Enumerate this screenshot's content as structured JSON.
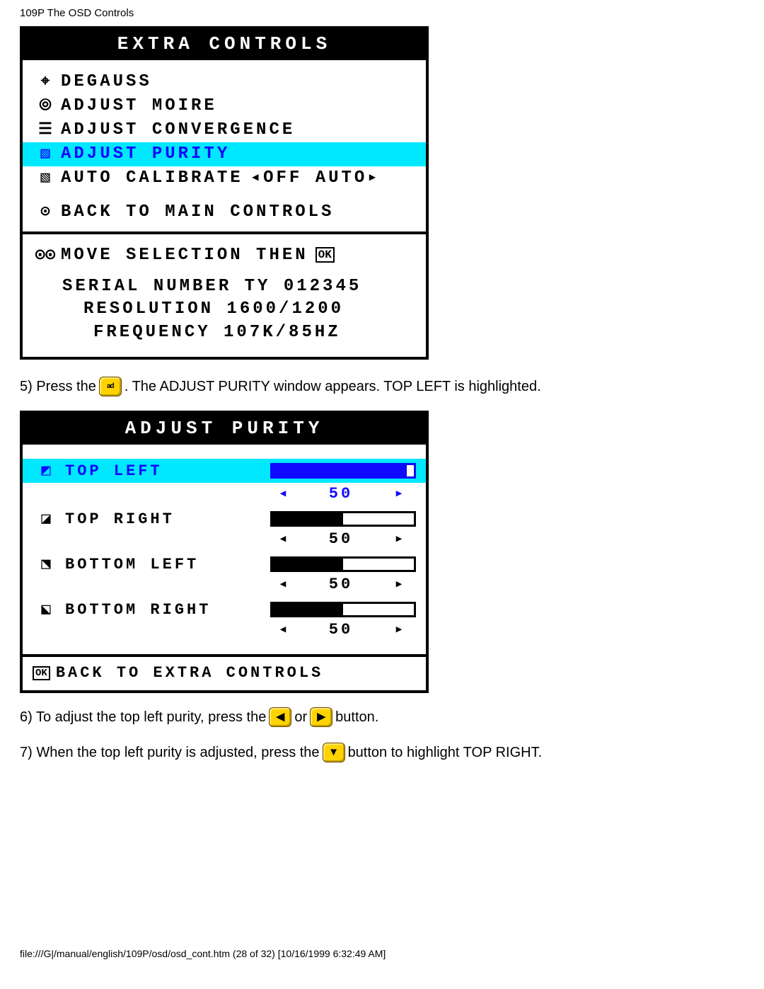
{
  "header": "109P The OSD Controls",
  "extra_controls": {
    "title": "EXTRA  CONTROLS",
    "highlight_index": 3,
    "items": [
      {
        "icon": "⌖",
        "label": "DEGAUSS"
      },
      {
        "icon": "⦾",
        "label": "ADJUST MOIRE"
      },
      {
        "icon": "☰",
        "label": "ADJUST CONVERGENCE"
      },
      {
        "icon": "▨",
        "label": "ADJUST PURITY"
      },
      {
        "icon": "▧",
        "label": "AUTO CALIBRATE",
        "extra": "◂OFF  AUTO▸"
      }
    ],
    "back_icon": "⊙",
    "back_label": "BACK TO MAIN CONTROLS",
    "move_icon": "⊙⊙",
    "move_label": "MOVE SELECTION THEN",
    "move_trail_icon": "⌷OK⌷",
    "serial_label": "SERIAL NUMBER TY 012345",
    "resolution_label": "RESOLUTION 1600/1200",
    "frequency_label": "FREQUENCY 107K/85HZ"
  },
  "step5": {
    "pre": "5) Press the",
    "btn": "ad",
    "post": ". The ADJUST PURITY window appears. TOP LEFT is highlighted."
  },
  "adjust_purity": {
    "title": "ADJUST PURITY",
    "highlight_index": 0,
    "rows": [
      {
        "icon": "◩",
        "label": "TOP LEFT",
        "value": 50,
        "fill_pct": 95
      },
      {
        "icon": "◪",
        "label": "TOP RIGHT",
        "value": 50,
        "fill_pct": 50
      },
      {
        "icon": "⬔",
        "label": "BOTTOM LEFT",
        "value": 50,
        "fill_pct": 50
      },
      {
        "icon": "⬕",
        "label": "BOTTOM RIGHT",
        "value": 50,
        "fill_pct": 50
      }
    ],
    "arrow_left": "◂",
    "arrow_right": "▸",
    "footer_icon": "⌷OK⌷",
    "footer_label": "BACK TO EXTRA CONTROLS"
  },
  "step6": {
    "pre": "6) To adjust the top left purity, press the",
    "left": "◀",
    "mid": "or",
    "right": "▶",
    "post": "button."
  },
  "step7": {
    "pre": "7) When the top left purity is adjusted, press the",
    "down": "▼",
    "post": "button to highlight TOP RIGHT."
  },
  "footer": "file:///G|/manual/english/109P/osd/osd_cont.htm (28 of 32) [10/16/1999 6:32:49 AM]"
}
